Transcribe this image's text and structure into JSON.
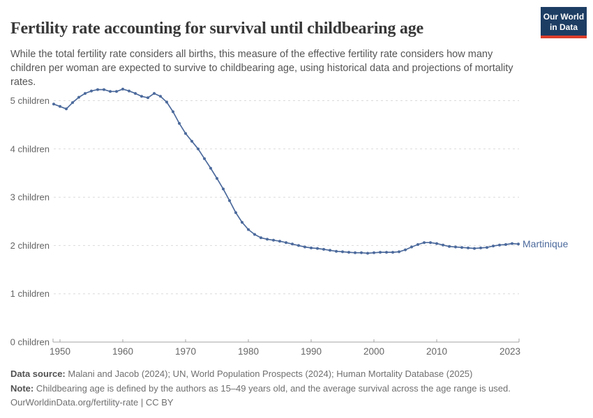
{
  "header": {
    "title": "Fertility rate accounting for survival until childbearing age",
    "subtitle": "While the total fertility rate considers all births, this measure of the effective fertility rate considers how many children per woman are expected to survive to childbearing age, using historical data and projections of mortality rates."
  },
  "logo": {
    "line1": "Our World",
    "line2": "in Data"
  },
  "chart_data": {
    "type": "line",
    "title": "Fertility rate accounting for survival until childbearing age",
    "xlabel": "",
    "ylabel": "children",
    "xlim": [
      1949,
      2023
    ],
    "ylim": [
      0,
      5.5
    ],
    "grid": "horizontal-dashed",
    "legend_position": "end-of-line-label",
    "xticks": [
      1950,
      1960,
      1970,
      1980,
      1990,
      2000,
      2010,
      2023
    ],
    "yticks": [
      0,
      1,
      2,
      3,
      4,
      5
    ],
    "ytick_labels": [
      "0 children",
      "1 children",
      "2 children",
      "3 children",
      "4 children",
      "5 children"
    ],
    "series": [
      {
        "name": "Martinique",
        "start_year": 1949,
        "end_year": 2023,
        "values": [
          4.93,
          4.88,
          4.83,
          4.96,
          5.07,
          5.15,
          5.2,
          5.23,
          5.23,
          5.19,
          5.19,
          5.24,
          5.2,
          5.15,
          5.09,
          5.06,
          5.15,
          5.09,
          4.97,
          4.77,
          4.53,
          4.32,
          4.16,
          4.0,
          3.8,
          3.6,
          3.39,
          3.17,
          2.93,
          2.68,
          2.48,
          2.33,
          2.23,
          2.16,
          2.13,
          2.11,
          2.09,
          2.06,
          2.03,
          2.0,
          1.97,
          1.95,
          1.94,
          1.92,
          1.9,
          1.88,
          1.87,
          1.86,
          1.85,
          1.85,
          1.84,
          1.85,
          1.86,
          1.86,
          1.86,
          1.87,
          1.91,
          1.97,
          2.02,
          2.06,
          2.06,
          2.04,
          2.01,
          1.98,
          1.97,
          1.96,
          1.95,
          1.94,
          1.95,
          1.96,
          1.99,
          2.01,
          2.02,
          2.04,
          2.03
        ]
      }
    ],
    "colors": {
      "line": "#4c6a9c",
      "series_label": "#4c6a9c",
      "grid": "#dadada",
      "axis": "#a3a3a3",
      "tick_label": "#666666"
    }
  },
  "footer": {
    "data_source_label": "Data source:",
    "data_source_text": " Malani and Jacob (2024); UN, World Population Prospects (2024); Human Mortality Database (2025)",
    "note_label": "Note:",
    "note_text": " Childbearing age is defined by the authors as 15–49 years old, and the average survival across the age range is used.",
    "license_line": "OurWorldinData.org/fertility-rate | CC BY"
  }
}
